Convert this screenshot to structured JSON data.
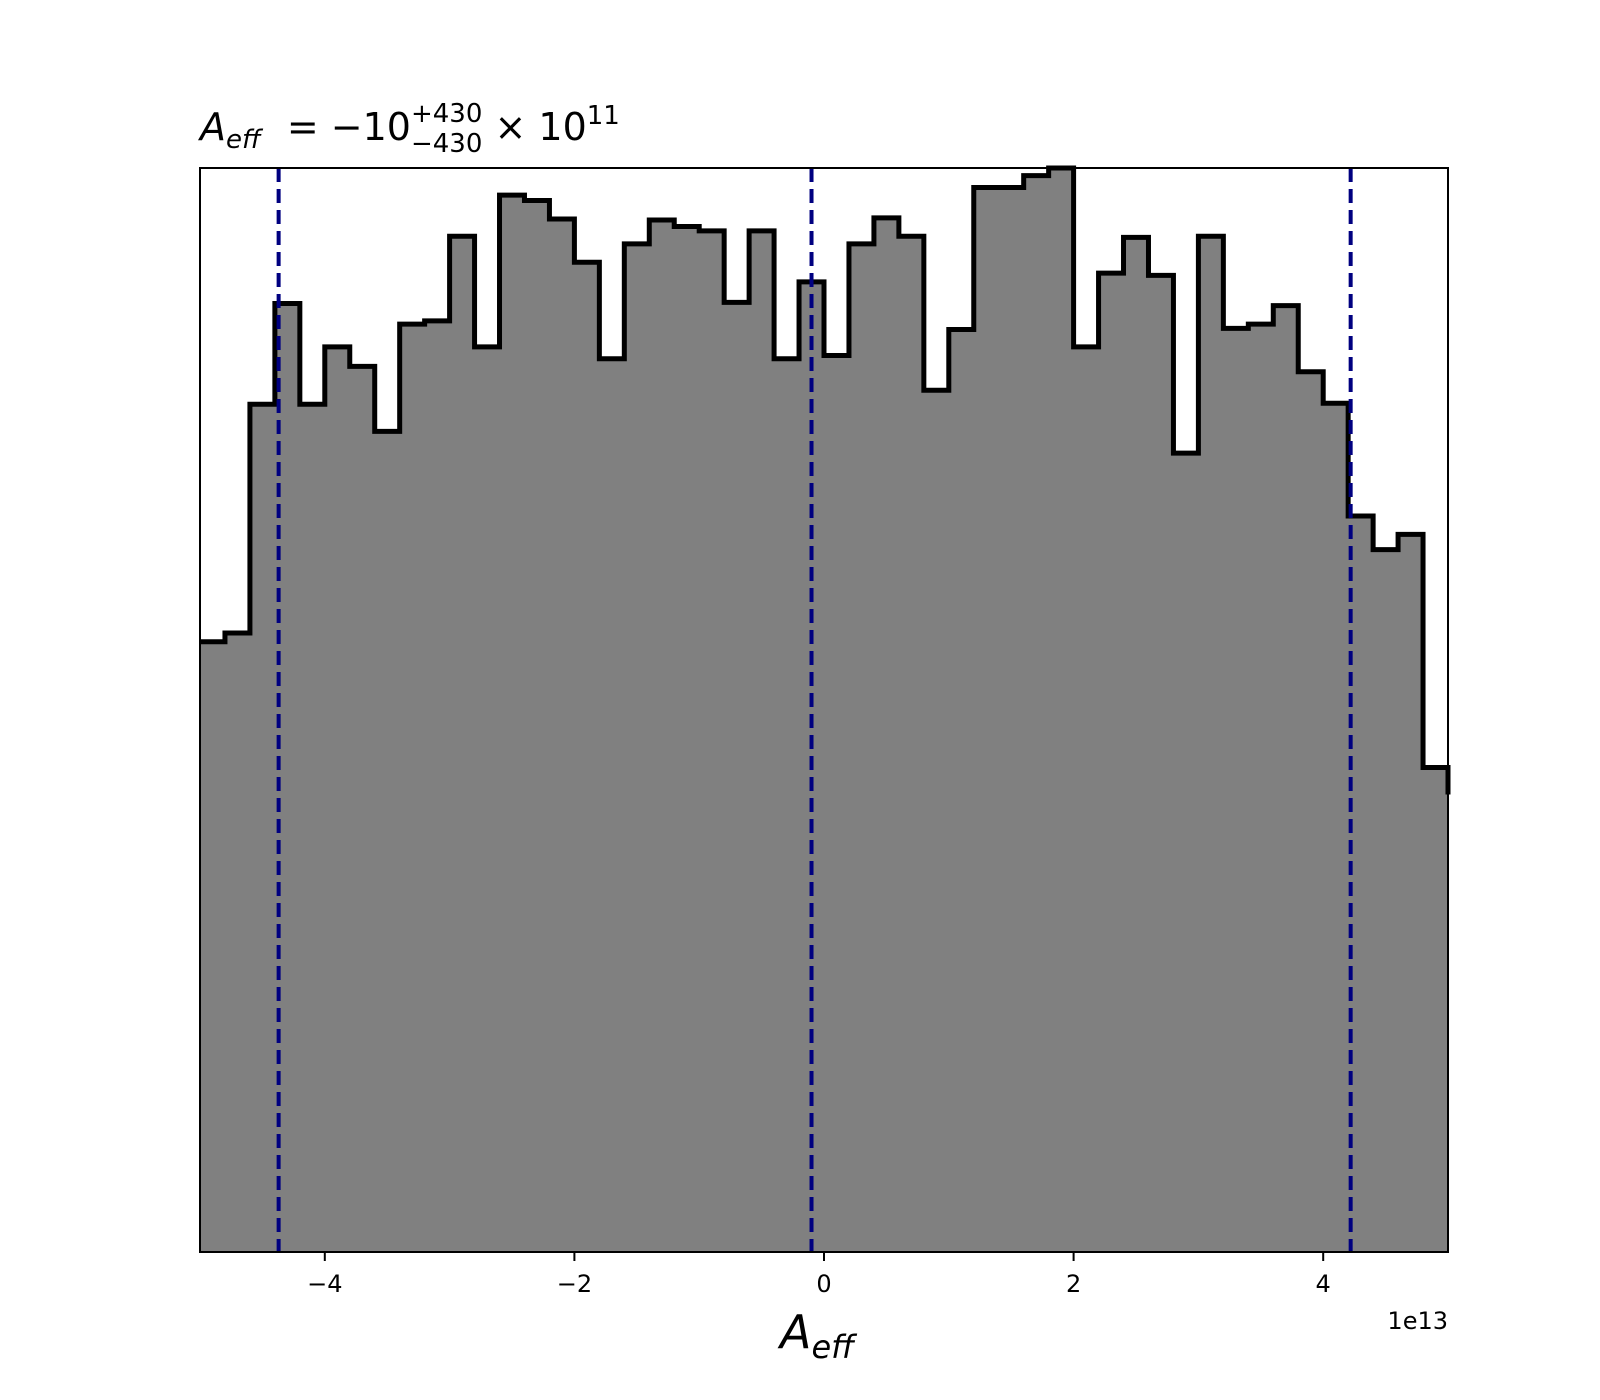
{
  "chart_data": {
    "type": "histogram",
    "title": {
      "symbol": "A",
      "subscript": "eff",
      "value": " = −10",
      "sup": "+430",
      "sub": "−430",
      "multiplier": " × 10",
      "exponent": "11"
    },
    "xlabel": {
      "symbol": "A",
      "subscript": "eff"
    },
    "x_offset_label": "1e13",
    "xlim": [
      -5,
      5
    ],
    "ylim": [
      0,
      1.0
    ],
    "x_ticks": [
      {
        "value": -4,
        "label": "−4"
      },
      {
        "value": -2,
        "label": "−2"
      },
      {
        "value": 0,
        "label": "0"
      },
      {
        "value": 2,
        "label": "2"
      },
      {
        "value": 4,
        "label": "4"
      }
    ],
    "y_ticks_shown": false,
    "grid": false,
    "bin_edges_start": -5,
    "bin_width": 0.2,
    "values": [
      0.563,
      0.571,
      0.782,
      0.875,
      0.782,
      0.835,
      0.817,
      0.757,
      0.856,
      0.859,
      0.937,
      0.835,
      0.975,
      0.97,
      0.953,
      0.913,
      0.824,
      0.93,
      0.952,
      0.946,
      0.942,
      0.876,
      0.942,
      0.824,
      0.895,
      0.827,
      0.93,
      0.954,
      0.937,
      0.795,
      0.851,
      0.982,
      0.982,
      0.993,
      1.0,
      0.835,
      0.903,
      0.936,
      0.901,
      0.737,
      0.937,
      0.852,
      0.856,
      0.873,
      0.812,
      0.783,
      0.679,
      0.648,
      0.662,
      0.447,
      0.422
    ],
    "fill_color": "#808080",
    "edge_color": "#000000",
    "quantile_lines": [
      {
        "value": -4.37,
        "label": "lower"
      },
      {
        "value": -0.1,
        "label": "median"
      },
      {
        "value": 4.22,
        "label": "upper"
      }
    ],
    "quantile_line_color": "#000080"
  }
}
